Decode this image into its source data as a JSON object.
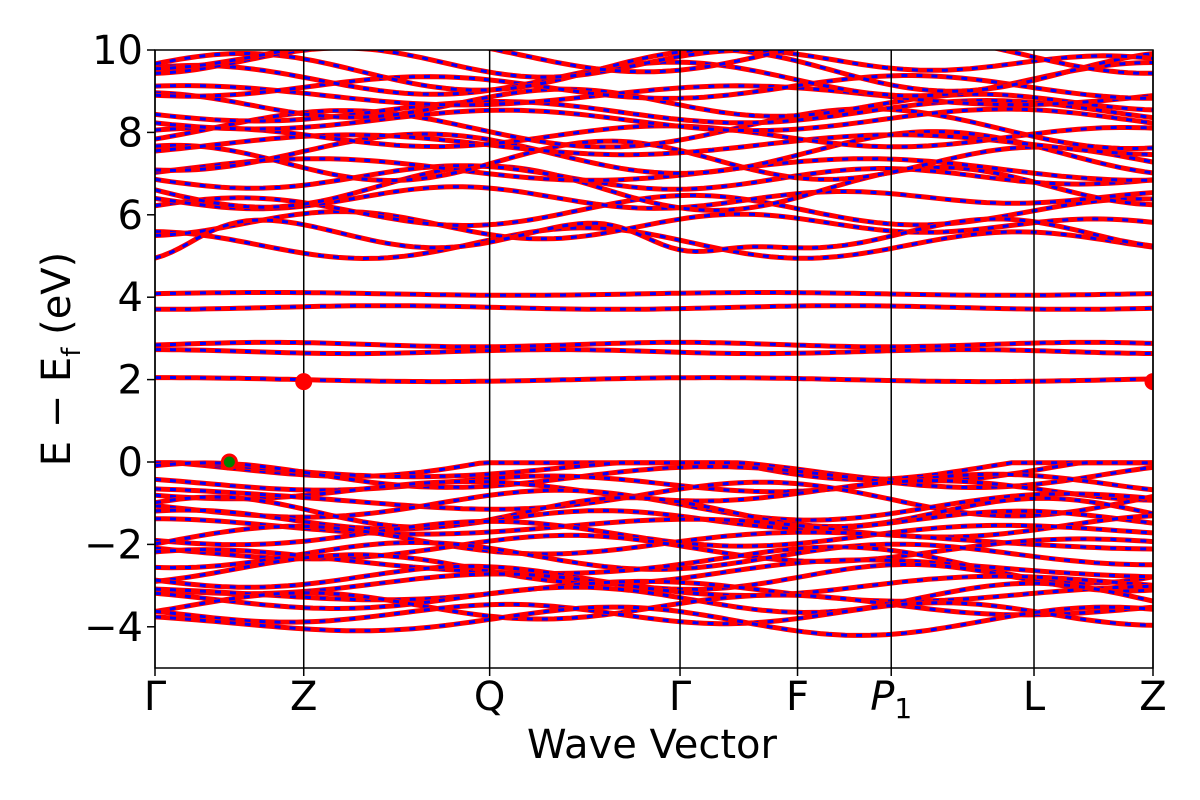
{
  "chart_data": {
    "type": "line",
    "title": "",
    "xlabel": "Wave Vector",
    "ylabel": "E − E",
    "ylabel_sub": "f",
    "ylabel_unit": "(eV)",
    "ylim": [
      -5,
      10
    ],
    "yticks": [
      "−4",
      "−2",
      "0",
      "2",
      "4",
      "6",
      "8",
      "10"
    ],
    "ytick_values": [
      -4,
      -2,
      0,
      2,
      4,
      6,
      8,
      10
    ],
    "xlim": [
      0,
      6.71
    ],
    "high_symmetry_points": [
      {
        "label": "Γ",
        "x": 0.0
      },
      {
        "label": "Z",
        "x": 1.0
      },
      {
        "label": "Q",
        "x": 2.25
      },
      {
        "label": "Γ",
        "x": 3.53
      },
      {
        "label": "F",
        "x": 4.32
      },
      {
        "label": "P",
        "sub": "1",
        "x": 4.95
      },
      {
        "label": "L",
        "x": 5.91
      },
      {
        "label": "Z",
        "x": 6.71
      }
    ],
    "series_colors": {
      "spin_up": "#ff0000",
      "spin_down": "#0000ff"
    },
    "grid": false,
    "markers": [
      {
        "name": "VBM",
        "x": 0.5,
        "y": 0.0,
        "color": "#008000",
        "edge": "#ff0000"
      },
      {
        "name": "CBM",
        "x": 1.0,
        "y": 1.95,
        "color": "#ff0000"
      },
      {
        "name": "CBM",
        "x": 6.71,
        "y": 1.95,
        "color": "#ff0000"
      }
    ],
    "bands": {
      "flat": [
        2.0,
        2.68,
        2.85,
        3.75,
        4.08
      ],
      "valence": [
        -0.05,
        -0.18,
        -0.35,
        -0.52,
        -0.7,
        -0.88,
        -1.05,
        -1.22,
        -1.4,
        -1.58,
        -1.75,
        -1.92,
        -2.1,
        -2.28,
        -2.45,
        -2.62,
        -2.8,
        -2.98,
        -3.15,
        -3.32,
        -3.5,
        -3.68,
        -3.85
      ],
      "conduction": [
        5.3,
        5.75,
        6.1,
        6.4,
        6.65,
        6.9,
        7.1,
        7.3,
        7.5,
        7.7,
        7.9,
        8.1,
        8.3,
        8.5,
        8.7,
        8.9,
        9.1,
        9.3,
        9.5,
        9.7,
        9.9
      ]
    }
  }
}
